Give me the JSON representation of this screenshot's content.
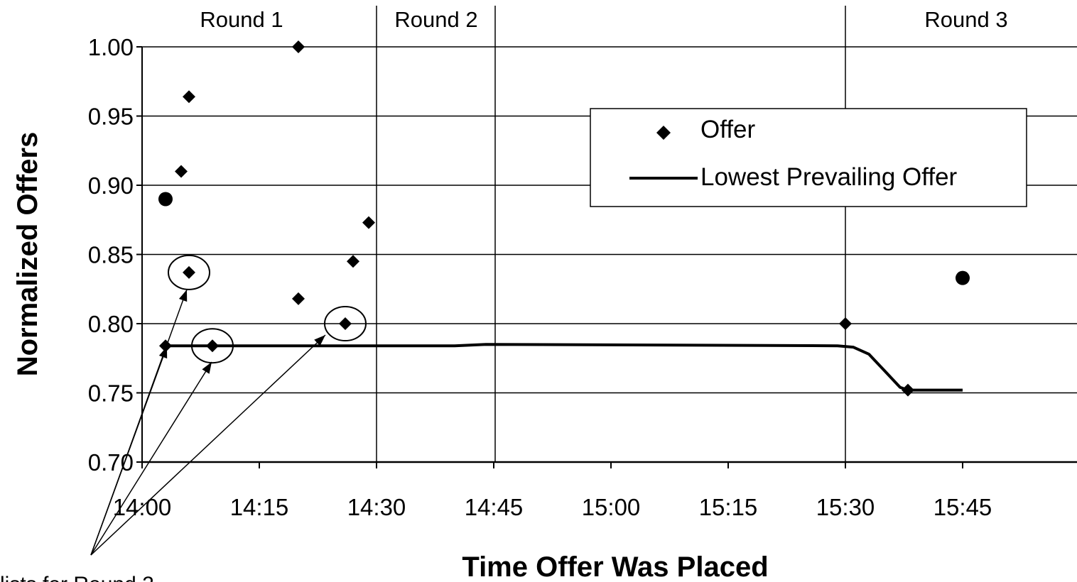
{
  "chart_data": {
    "type": "scatter",
    "title": "",
    "xlabel": "Time Offer Was Placed",
    "ylabel": "Normalized Offers",
    "x_tick_labels": [
      "14:00",
      "14:15",
      "14:30",
      "14:45",
      "15:00",
      "15:15",
      "15:30",
      "15:45"
    ],
    "y_tick_labels": [
      "0.70",
      "0.75",
      "0.80",
      "0.85",
      "0.90",
      "0.95",
      "1.00"
    ],
    "xlim": [
      "14:00",
      "15:55"
    ],
    "ylim": [
      0.7,
      1.0
    ],
    "grid": "horizontal",
    "legend_position": "upper-right",
    "rounds": [
      {
        "label": "Round 1",
        "start": "14:00"
      },
      {
        "label": "Round 2",
        "start": "14:30"
      },
      {
        "label": "Round 3",
        "start": "15:30"
      }
    ],
    "series": [
      {
        "name": "Offer",
        "kind": "scatter",
        "marker": "diamond",
        "points": [
          {
            "x": "14:03",
            "y": 0.784
          },
          {
            "x": "14:03",
            "y": 0.89,
            "marker": "circle"
          },
          {
            "x": "14:05",
            "y": 0.91
          },
          {
            "x": "14:06",
            "y": 0.964
          },
          {
            "x": "14:06",
            "y": 0.837,
            "highlight": true
          },
          {
            "x": "14:09",
            "y": 0.784,
            "highlight": true
          },
          {
            "x": "14:20",
            "y": 1.0
          },
          {
            "x": "14:20",
            "y": 0.818
          },
          {
            "x": "14:26",
            "y": 0.8,
            "highlight": true
          },
          {
            "x": "14:27",
            "y": 0.845
          },
          {
            "x": "14:29",
            "y": 0.873
          },
          {
            "x": "15:30",
            "y": 0.8
          },
          {
            "x": "15:38",
            "y": 0.752
          },
          {
            "x": "15:45",
            "y": 0.833,
            "marker": "circle"
          }
        ]
      },
      {
        "name": "Lowest Prevailing Offer",
        "kind": "line",
        "points": [
          {
            "x": "14:03",
            "y": 0.784
          },
          {
            "x": "14:40",
            "y": 0.784
          },
          {
            "x": "14:44",
            "y": 0.785
          },
          {
            "x": "15:29",
            "y": 0.784
          },
          {
            "x": "15:31",
            "y": 0.783
          },
          {
            "x": "15:33",
            "y": 0.778
          },
          {
            "x": "15:35",
            "y": 0.766
          },
          {
            "x": "15:37",
            "y": 0.754
          },
          {
            "x": "15:38",
            "y": 0.752
          },
          {
            "x": "15:41",
            "y": 0.752
          },
          {
            "x": "15:45",
            "y": 0.752
          }
        ]
      }
    ],
    "annotation": "lists for Round 2"
  }
}
